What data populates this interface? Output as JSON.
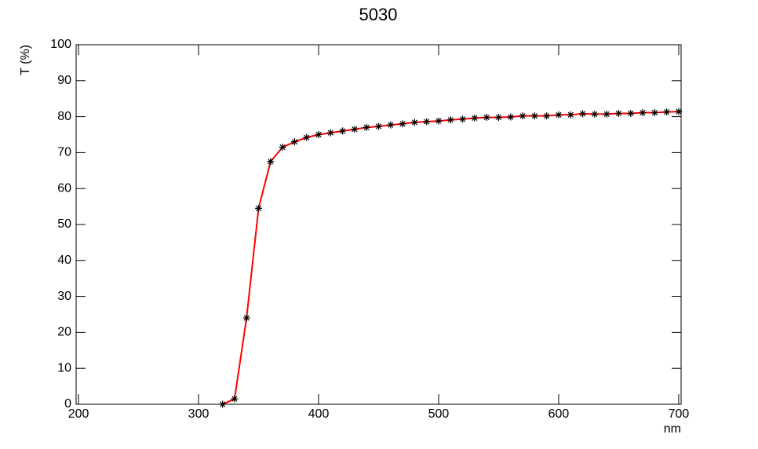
{
  "chart_data": {
    "type": "line",
    "title": "5030",
    "x_label": "nm",
    "y_label": "T (%)",
    "x": [
      320,
      330,
      340,
      350,
      360,
      370,
      380,
      390,
      400,
      410,
      420,
      430,
      440,
      450,
      460,
      470,
      480,
      490,
      500,
      510,
      520,
      530,
      540,
      550,
      560,
      570,
      580,
      590,
      600,
      610,
      620,
      630,
      640,
      650,
      660,
      670,
      680,
      690,
      700
    ],
    "values": [
      0,
      1.5,
      24,
      54.5,
      67.5,
      71.5,
      73,
      74.2,
      75,
      75.5,
      76,
      76.5,
      77,
      77.3,
      77.7,
      78,
      78.4,
      78.6,
      78.8,
      79.1,
      79.3,
      79.6,
      79.8,
      79.8,
      79.9,
      80.2,
      80.2,
      80.2,
      80.5,
      80.5,
      80.8,
      80.7,
      80.7,
      80.9,
      80.9,
      81.1,
      81.1,
      81.3,
      81.4
    ],
    "line_color": "#ff0000",
    "marker_color": "#000000",
    "xlim": [
      198,
      702
    ],
    "ylim": [
      0,
      100
    ],
    "xticks": [
      200,
      300,
      400,
      500,
      600,
      700
    ],
    "yticks": [
      0,
      10,
      20,
      30,
      40,
      50,
      60,
      70,
      80,
      90,
      100
    ]
  }
}
